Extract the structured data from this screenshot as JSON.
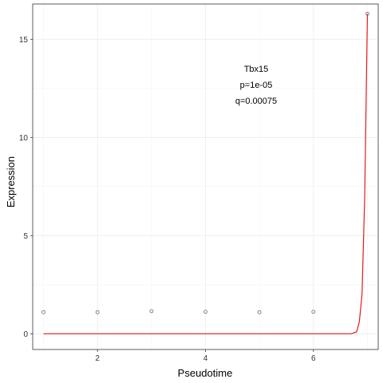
{
  "chart_data": {
    "type": "scatter",
    "xlabel": "Pseudotime",
    "ylabel": "Expression",
    "xlim": [
      0.8,
      7.2
    ],
    "ylim": [
      -0.8,
      16.8
    ],
    "x_ticks": [
      2,
      4,
      6
    ],
    "y_ticks": [
      0,
      5,
      10,
      15
    ],
    "grid": true,
    "points": {
      "x": [
        1,
        2,
        3,
        4,
        5,
        6,
        7
      ],
      "y": [
        1.1,
        1.1,
        1.15,
        1.12,
        1.1,
        1.12,
        16.3
      ]
    },
    "fit_line": {
      "color": "#e31a1c",
      "x": [
        1,
        2,
        3,
        4,
        5,
        6,
        6.7,
        6.8,
        6.85,
        6.9,
        6.95,
        7.0
      ],
      "y": [
        0,
        0,
        0,
        0,
        0,
        0,
        0.0,
        0.1,
        0.6,
        2.0,
        7.0,
        16.3
      ]
    },
    "annotations": [
      "Tbx15",
      "p=1e-05",
      "q=0.00075"
    ]
  }
}
